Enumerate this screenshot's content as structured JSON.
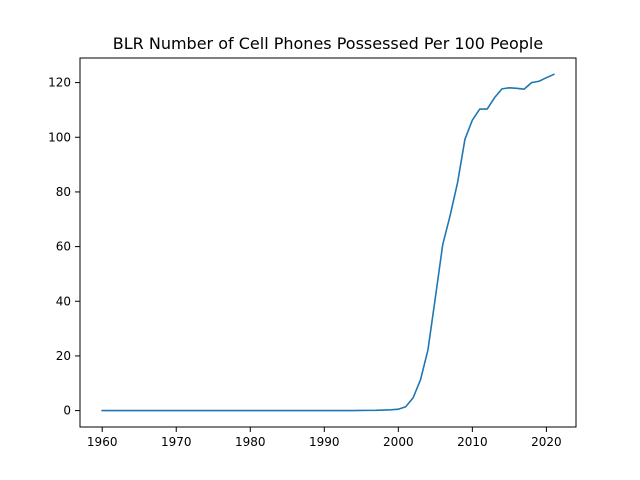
{
  "chart_data": {
    "type": "line",
    "title": "BLR Number of Cell Phones Possessed Per 100 People",
    "xlabel": "",
    "ylabel": "",
    "xlim": [
      1957,
      2024
    ],
    "ylim": [
      -6,
      129
    ],
    "x_ticks": [
      1960,
      1970,
      1980,
      1990,
      2000,
      2010,
      2020
    ],
    "y_ticks": [
      0,
      20,
      40,
      60,
      80,
      100,
      120
    ],
    "grid": false,
    "legend": "none",
    "line_color": "#1f77b4",
    "series": [
      {
        "x": [
          1960,
          1961,
          1962,
          1963,
          1964,
          1965,
          1966,
          1967,
          1968,
          1969,
          1970,
          1971,
          1972,
          1973,
          1974,
          1975,
          1976,
          1977,
          1978,
          1979,
          1980,
          1981,
          1982,
          1983,
          1984,
          1985,
          1986,
          1987,
          1988,
          1989,
          1990,
          1991,
          1992,
          1993,
          1994,
          1995,
          1996,
          1997,
          1998,
          1999,
          2000,
          2001,
          2002,
          2003,
          2004,
          2005,
          2006,
          2007,
          2008,
          2009,
          2010,
          2011,
          2012,
          2013,
          2014,
          2015,
          2016,
          2017,
          2018,
          2019,
          2020,
          2021
        ],
        "values": [
          0,
          0,
          0,
          0,
          0,
          0,
          0,
          0,
          0,
          0,
          0,
          0,
          0,
          0,
          0,
          0,
          0,
          0,
          0,
          0,
          0,
          0,
          0,
          0,
          0,
          0,
          0,
          0,
          0,
          0,
          0,
          0,
          0,
          0,
          0.01,
          0.06,
          0.08,
          0.1,
          0.2,
          0.3,
          0.5,
          1.4,
          4.7,
          11.3,
          22.2,
          41.3,
          60.8,
          71.4,
          83.4,
          99.3,
          106.3,
          110.3,
          110.3,
          114.5,
          117.7,
          118.1,
          117.9,
          117.6,
          120.0,
          120.5,
          121.8,
          123.0
        ]
      }
    ]
  }
}
